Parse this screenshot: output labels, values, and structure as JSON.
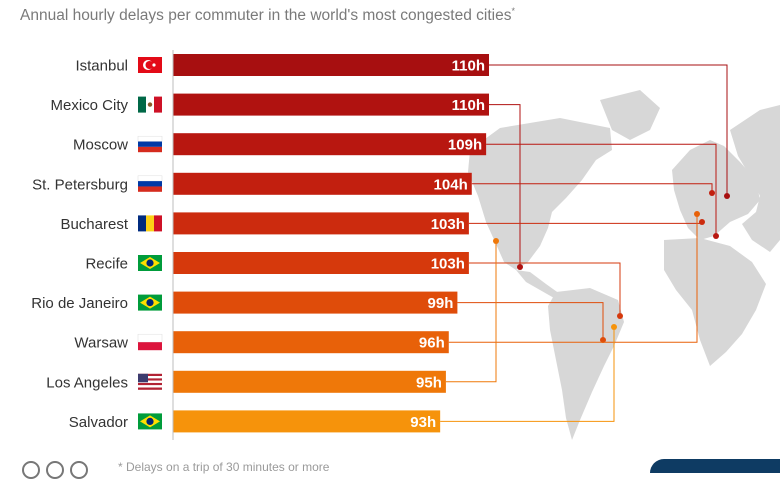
{
  "subtitle": "Annual hourly delays per commuter in the world's most congested cities",
  "subtitle_mark": "*",
  "footnote": "* Delays on a trip of 30 minutes or more",
  "footer_icons": [
    "cc-icon",
    "by-icon",
    "nd-icon"
  ],
  "colors": {
    "background": "#ffffff",
    "map": "#d7d7d7",
    "axis": "#bdbdbd",
    "city_text": "#333333",
    "brand": "#0e3b63"
  },
  "chart_data": {
    "type": "bar",
    "orientation": "horizontal",
    "title": "Annual hourly delays per commuter in the world's most congested cities",
    "categories": [
      "Istanbul",
      "Mexico City",
      "Moscow",
      "St. Petersburg",
      "Bucharest",
      "Recife",
      "Rio de Janeiro",
      "Warsaw",
      "Los Angeles",
      "Salvador"
    ],
    "values": [
      110,
      110,
      109,
      104,
      103,
      103,
      99,
      96,
      95,
      93
    ],
    "value_labels": [
      "110h",
      "110h",
      "109h",
      "104h",
      "103h",
      "103h",
      "99h",
      "96h",
      "95h",
      "93h"
    ],
    "flags": [
      "turkey",
      "mexico",
      "russia",
      "russia",
      "romania",
      "brazil",
      "brazil",
      "poland",
      "usa",
      "brazil"
    ],
    "bar_colors": [
      "#a70f10",
      "#b01210",
      "#b81710",
      "#c21f0f",
      "#cc2b0e",
      "#d6390c",
      "#df4c0a",
      "#e86109",
      "#ef7809",
      "#f6930b"
    ],
    "xlim": [
      0,
      110
    ],
    "legend": "none",
    "grid": false,
    "map_background": true
  }
}
